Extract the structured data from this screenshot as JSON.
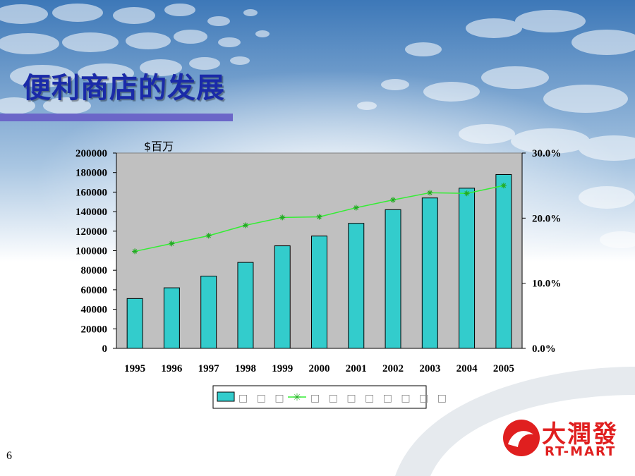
{
  "slide": {
    "title": "便利商店的发展",
    "page_number": "6"
  },
  "logo": {
    "chinese": "大潤發",
    "english": "RT-MART"
  },
  "colors": {
    "bar": "#33cccc",
    "line": "#33ee33",
    "plot_bg": "#c0c0c0",
    "title": "#1a2aa8"
  },
  "chart_data": {
    "type": "bar",
    "categories": [
      "1995",
      "1996",
      "1997",
      "1998",
      "1999",
      "2000",
      "2001",
      "2002",
      "2003",
      "2004",
      "2005"
    ],
    "series": [
      {
        "type": "bar",
        "axis": "left",
        "values": [
          51000,
          62000,
          74000,
          88000,
          105000,
          115000,
          128000,
          142000,
          154000,
          164000,
          178000
        ]
      },
      {
        "type": "line",
        "axis": "right",
        "marker": "asterisk",
        "values": [
          14.9,
          16.1,
          17.3,
          18.9,
          20.1,
          20.2,
          21.6,
          22.8,
          23.9,
          23.8,
          25.0
        ]
      }
    ],
    "y_left": {
      "unit_label": "$百万",
      "ylim": [
        0,
        200000
      ],
      "ticks": [
        "0",
        "20000",
        "40000",
        "60000",
        "80000",
        "100000",
        "120000",
        "140000",
        "160000",
        "180000",
        "200000"
      ]
    },
    "y_right": {
      "ylim": [
        0,
        30
      ],
      "ticks": [
        "0.0%",
        "10.0%",
        "20.0%",
        "30.0%"
      ]
    },
    "legend": {
      "placement": "bottom",
      "entries": [
        "□ □ □",
        "□ □ □ □ □ □ □ □"
      ]
    },
    "grid": false
  }
}
